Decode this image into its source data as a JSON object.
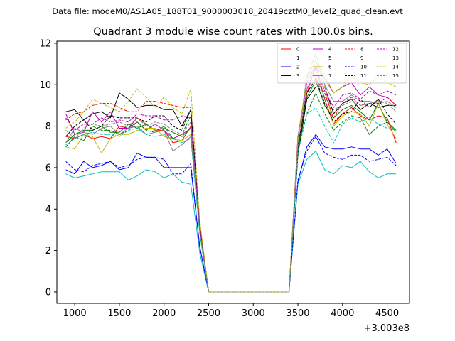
{
  "header": {
    "data_file_text": "Data file: modeM0/AS1A05_188T01_9000003018_20419cztM0_level2_quad_clean.evt"
  },
  "chart_data": {
    "type": "line",
    "title": "Quadrant 3 module wise count rates with 100.0s bins.",
    "xlabel": "",
    "ylabel": "",
    "x_offset_label": "+3.003e8",
    "xlim": [
      800,
      4750
    ],
    "ylim": [
      -0.55,
      12.1
    ],
    "x_ticks": [
      1000,
      1500,
      2000,
      2500,
      3000,
      3500,
      4000,
      4500
    ],
    "y_ticks": [
      0,
      2,
      4,
      6,
      8,
      10,
      12
    ],
    "x": [
      900,
      1000,
      1100,
      1200,
      1300,
      1400,
      1500,
      1600,
      1700,
      1800,
      1900,
      2000,
      2100,
      2200,
      2300,
      2400,
      2500,
      2600,
      2700,
      2800,
      2900,
      3000,
      3100,
      3200,
      3300,
      3400,
      3500,
      3600,
      3700,
      3800,
      3900,
      4000,
      4100,
      4200,
      4300,
      4400,
      4500,
      4600
    ],
    "legend_position": "top-right",
    "series": [
      {
        "name": "0",
        "color": "#ff0000",
        "dash": "solid",
        "values": [
          7.5,
          7.4,
          7.6,
          7.4,
          7.5,
          7.4,
          8.0,
          7.9,
          8.4,
          8.1,
          7.8,
          7.8,
          7.2,
          7.3,
          8.0,
          3.0,
          0,
          0,
          0,
          0,
          0,
          0,
          0,
          0,
          0,
          0,
          6.8,
          9.6,
          10.9,
          9.3,
          8.1,
          8.6,
          8.9,
          8.5,
          8.3,
          8.5,
          8.4,
          7.2
        ]
      },
      {
        "name": "1",
        "color": "#008000",
        "dash": "solid",
        "values": [
          7.2,
          7.6,
          7.8,
          7.8,
          8.0,
          7.7,
          7.7,
          8.1,
          7.9,
          8.1,
          7.8,
          7.9,
          7.7,
          7.5,
          7.9,
          3.0,
          0,
          0,
          0,
          0,
          0,
          0,
          0,
          0,
          0,
          0,
          6.9,
          9.4,
          10.2,
          9.0,
          8.4,
          8.8,
          9.0,
          8.7,
          8.3,
          9.1,
          8.2,
          7.8
        ]
      },
      {
        "name": "2",
        "color": "#0000ff",
        "dash": "solid",
        "values": [
          5.9,
          5.7,
          6.3,
          6.0,
          6.1,
          6.3,
          5.9,
          6.0,
          6.7,
          6.5,
          6.5,
          6.0,
          6.0,
          6.0,
          6.0,
          2.2,
          0,
          0,
          0,
          0,
          0,
          0,
          0,
          0,
          0,
          0,
          5.3,
          7.0,
          7.6,
          7.0,
          6.9,
          6.9,
          7.0,
          6.9,
          6.9,
          6.6,
          6.9,
          6.2
        ]
      },
      {
        "name": "3",
        "color": "#000000",
        "dash": "solid",
        "values": [
          8.7,
          8.8,
          8.3,
          8.6,
          8.7,
          8.4,
          9.6,
          9.3,
          8.9,
          9.0,
          9.0,
          8.8,
          8.8,
          8.0,
          8.8,
          3.2,
          0,
          0,
          0,
          0,
          0,
          0,
          0,
          0,
          0,
          0,
          6.6,
          9.3,
          9.9,
          9.9,
          8.6,
          9.1,
          9.3,
          8.8,
          9.1,
          8.9,
          9.0,
          9.0
        ]
      },
      {
        "name": "4",
        "color": "#bf00bf",
        "dash": "solid",
        "values": [
          8.6,
          7.6,
          7.7,
          8.7,
          8.2,
          8.7,
          7.9,
          7.9,
          8.2,
          7.8,
          8.1,
          7.8,
          7.4,
          7.6,
          7.9,
          3.0,
          0,
          0,
          0,
          0,
          0,
          0,
          0,
          0,
          0,
          0,
          7.5,
          10.1,
          10.9,
          10.3,
          9.6,
          9.9,
          10.1,
          9.5,
          9.9,
          9.5,
          9.4,
          9.0
        ]
      },
      {
        "name": "5",
        "color": "#00bfbf",
        "dash": "solid",
        "values": [
          5.7,
          5.5,
          5.6,
          5.7,
          5.8,
          5.8,
          5.8,
          5.4,
          5.6,
          5.9,
          5.8,
          5.5,
          5.7,
          5.3,
          5.2,
          1.9,
          0,
          0,
          0,
          0,
          0,
          0,
          0,
          0,
          0,
          0,
          5.2,
          6.4,
          6.8,
          5.9,
          5.7,
          6.1,
          6.0,
          6.3,
          5.8,
          5.5,
          5.7,
          5.7
        ]
      },
      {
        "name": "6",
        "color": "#bfbf00",
        "dash": "solid",
        "values": [
          7.0,
          6.9,
          7.6,
          7.5,
          6.7,
          7.4,
          7.6,
          7.6,
          7.8,
          7.9,
          7.9,
          7.5,
          7.4,
          7.3,
          7.6,
          2.9,
          0,
          0,
          0,
          0,
          0,
          0,
          0,
          0,
          0,
          0,
          7.4,
          10.3,
          11.2,
          10.0,
          8.0,
          8.5,
          8.7,
          8.6,
          8.0,
          9.1,
          8.1,
          7.4
        ]
      },
      {
        "name": "7",
        "color": "#808080",
        "dash": "solid",
        "values": [
          7.2,
          7.9,
          7.7,
          7.6,
          7.9,
          8.0,
          7.6,
          7.9,
          8.0,
          7.6,
          7.7,
          7.8,
          6.8,
          7.1,
          7.5,
          3.0,
          0,
          0,
          0,
          0,
          0,
          0,
          0,
          0,
          0,
          0,
          7.3,
          10.4,
          11.5,
          10.0,
          9.2,
          9.2,
          9.5,
          9.2,
          9.2,
          9.1,
          9.2,
          8.9
        ]
      },
      {
        "name": "8",
        "color": "#ff0000",
        "dash": "dashed",
        "values": [
          8.3,
          8.6,
          8.7,
          9.0,
          9.1,
          9.1,
          8.9,
          8.7,
          8.7,
          9.2,
          9.2,
          9.1,
          9.0,
          8.9,
          8.9,
          3.3,
          0,
          0,
          0,
          0,
          0,
          0,
          0,
          0,
          0,
          0,
          7.0,
          9.6,
          10.3,
          9.6,
          8.4,
          9.1,
          9.4,
          9.0,
          9.1,
          9.1,
          9.4,
          9.0
        ]
      },
      {
        "name": "9",
        "color": "#008000",
        "dash": "dashed",
        "values": [
          7.0,
          7.5,
          7.3,
          8.0,
          7.8,
          7.8,
          7.6,
          7.8,
          8.2,
          7.8,
          7.7,
          8.0,
          7.4,
          7.6,
          8.5,
          3.1,
          0,
          0,
          0,
          0,
          0,
          0,
          0,
          0,
          0,
          0,
          6.9,
          8.6,
          9.6,
          8.6,
          7.8,
          8.2,
          8.5,
          8.4,
          7.6,
          8.0,
          8.2,
          7.7
        ]
      },
      {
        "name": "10",
        "color": "#0000ff",
        "dash": "dashed",
        "values": [
          6.3,
          5.9,
          5.8,
          6.1,
          6.2,
          6.3,
          6.0,
          6.1,
          6.4,
          6.5,
          6.5,
          6.4,
          5.7,
          5.7,
          6.2,
          2.2,
          0,
          0,
          0,
          0,
          0,
          0,
          0,
          0,
          0,
          0,
          5.4,
          6.8,
          7.5,
          6.7,
          6.5,
          6.4,
          6.6,
          6.6,
          6.3,
          6.4,
          6.5,
          6.1
        ]
      },
      {
        "name": "11",
        "color": "#000000",
        "dash": "dashed",
        "values": [
          7.5,
          8.0,
          8.3,
          7.8,
          8.0,
          8.5,
          8.4,
          8.4,
          8.4,
          8.2,
          8.5,
          8.5,
          8.0,
          7.8,
          8.8,
          3.2,
          0,
          0,
          0,
          0,
          0,
          0,
          0,
          0,
          0,
          0,
          7.0,
          9.6,
          10.3,
          9.1,
          8.2,
          8.6,
          8.7,
          9.3,
          8.9,
          9.3,
          8.6,
          8.1
        ]
      },
      {
        "name": "12",
        "color": "#bf00bf",
        "dash": "dashed",
        "values": [
          8.4,
          7.8,
          8.1,
          8.1,
          8.4,
          8.2,
          8.3,
          8.2,
          8.6,
          8.5,
          8.5,
          8.3,
          8.3,
          8.5,
          8.4,
          3.1,
          0,
          0,
          0,
          0,
          0,
          0,
          0,
          0,
          0,
          0,
          7.4,
          9.8,
          10.8,
          9.7,
          8.9,
          9.5,
          9.6,
          9.3,
          9.7,
          9.5,
          9.7,
          9.5
        ]
      },
      {
        "name": "13",
        "color": "#00bfbf",
        "dash": "dashed",
        "values": [
          7.1,
          7.4,
          7.6,
          7.7,
          7.6,
          7.6,
          7.5,
          7.8,
          7.9,
          7.6,
          7.5,
          7.6,
          7.4,
          7.2,
          7.4,
          2.8,
          0,
          0,
          0,
          0,
          0,
          0,
          0,
          0,
          0,
          0,
          6.7,
          8.6,
          8.9,
          8.0,
          7.2,
          8.1,
          8.4,
          8.2,
          8.4,
          8.1,
          7.9,
          7.8
        ]
      },
      {
        "name": "14",
        "color": "#bfbf00",
        "dash": "dashed",
        "values": [
          7.9,
          8.2,
          8.7,
          9.3,
          9.1,
          8.9,
          8.7,
          9.2,
          9.8,
          9.4,
          8.9,
          9.4,
          8.9,
          8.6,
          9.8,
          3.5,
          0,
          0,
          0,
          0,
          0,
          0,
          0,
          0,
          0,
          0,
          7.3,
          10.3,
          11.0,
          10.5,
          9.6,
          9.9,
          10.4,
          10.1,
          10.0,
          10.4,
          10.1,
          9.9
        ]
      },
      {
        "name": "15",
        "color": "#808080",
        "dash": "dashed",
        "values": [
          7.8,
          7.4,
          7.9,
          8.1,
          8.0,
          8.1,
          8.2,
          8.0,
          8.4,
          8.0,
          8.2,
          8.1,
          7.8,
          7.6,
          8.2,
          3.0,
          0,
          0,
          0,
          0,
          0,
          0,
          0,
          0,
          0,
          0,
          7.1,
          9.8,
          10.4,
          9.4,
          8.8,
          9.0,
          9.2,
          9.0,
          9.1,
          9.2,
          9.1,
          8.7
        ]
      }
    ]
  }
}
